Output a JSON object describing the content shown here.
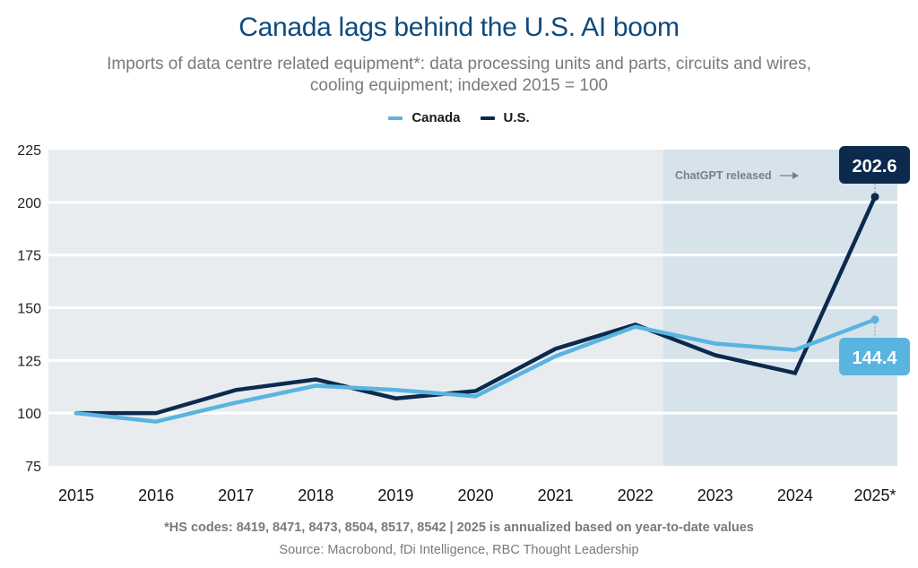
{
  "header": {
    "title": "Canada lags behind the U.S. AI boom",
    "subtitle": "Imports of data centre related equipment*: data processing units and parts, circuits and wires, cooling equipment; indexed 2015 = 100"
  },
  "footer": {
    "footnote": "*HS codes: 8419, 8471, 8473, 8504, 8517, 8542 | 2025 is annualized based on year-to-date values",
    "source": "Source: Macrobond, fDi Intelligence, RBC Thought Leadership"
  },
  "colors": {
    "canada": "#5ab4e0",
    "us": "#0b2a4e",
    "plot_bg": "#e9ecef",
    "highlight_bg": "#d7e3ea",
    "gridline": "#ffffff",
    "title": "#0e4a7e"
  },
  "chart_data": {
    "type": "line",
    "title": "Canada lags behind the U.S. AI boom",
    "subtitle": "Imports of data centre related equipment*: data processing units and parts, circuits and wires, cooling equipment; indexed 2015 = 100",
    "xlabel": "",
    "ylabel": "",
    "categories": [
      "2015",
      "2016",
      "2017",
      "2018",
      "2019",
      "2020",
      "2021",
      "2022",
      "2023",
      "2024",
      "2025*"
    ],
    "series": [
      {
        "name": "Canada",
        "values": [
          100,
          96,
          105,
          113,
          111,
          108,
          127,
          141,
          133,
          130,
          144.4
        ]
      },
      {
        "name": "U.S.",
        "values": [
          100,
          100,
          111,
          116,
          107,
          110.5,
          130.5,
          142,
          127.5,
          119,
          202.6
        ]
      }
    ],
    "ylim": [
      75,
      225
    ],
    "yticks": [
      75,
      100,
      125,
      150,
      175,
      200,
      225
    ],
    "grid": true,
    "legend": "top-center",
    "shaded_region": {
      "from_x": 7.35,
      "to_x": 10.3,
      "label": "ChatGPT released"
    },
    "end_labels": [
      {
        "series": "U.S.",
        "value": "202.6",
        "position": "above"
      },
      {
        "series": "Canada",
        "value": "144.4",
        "position": "below"
      }
    ]
  }
}
